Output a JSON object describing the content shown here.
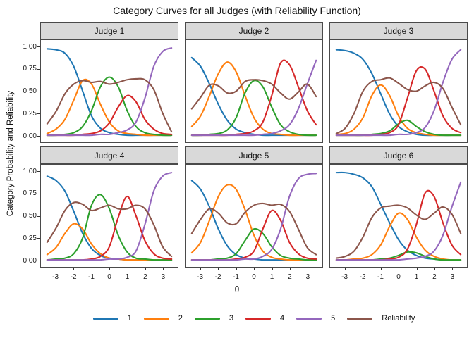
{
  "title": "Category Curves for all Judges (with Reliability Function)",
  "axes": {
    "x_title": "θ",
    "y_title": "Category Probability and Reliability",
    "x_ticks": [
      {
        "label": "-3",
        "value": -3
      },
      {
        "label": "-2",
        "value": -2
      },
      {
        "label": "-1",
        "value": -1
      },
      {
        "label": "0",
        "value": 0
      },
      {
        "label": "1",
        "value": 1
      },
      {
        "label": "2",
        "value": 2
      },
      {
        "label": "3",
        "value": 3
      }
    ],
    "y_ticks": [
      {
        "label": "1.00",
        "value": 1
      },
      {
        "label": "0.75",
        "value": 0.75
      },
      {
        "label": "0.50",
        "value": 0.5
      },
      {
        "label": "0.25",
        "value": 0.25
      },
      {
        "label": "0.00",
        "value": 0
      }
    ]
  },
  "legend": {
    "entries": [
      {
        "label": "1",
        "color": "#1f77b4"
      },
      {
        "label": "2",
        "color": "#ff7f0e"
      },
      {
        "label": "3",
        "color": "#2ca02c"
      },
      {
        "label": "4",
        "color": "#d62728"
      },
      {
        "label": "5",
        "color": "#9467bd"
      },
      {
        "label": "Reliability",
        "color": "#8c564b"
      }
    ]
  },
  "colors": {
    "strip_bg": "#d9d9d9",
    "border": "#4a4a4a",
    "tick": "#333333"
  },
  "chart_data": {
    "type": "line",
    "title": "Category Curves for all Judges (with Reliability Function)",
    "xlabel": "θ",
    "ylabel": "Category Probability and Reliability",
    "grid": false,
    "legend_position": "bottom",
    "xlim": [
      -3.85,
      3.85
    ],
    "ylim": [
      0,
      1
    ],
    "x": [
      -3.5,
      -3,
      -2.5,
      -2,
      -1.5,
      -1,
      -0.5,
      0,
      0.5,
      1,
      1.5,
      2,
      2.5,
      3,
      3.5
    ],
    "series_order": [
      "1",
      "2",
      "3",
      "4",
      "5",
      "Reliability"
    ],
    "palette": {
      "1": "#1f77b4",
      "2": "#ff7f0e",
      "3": "#2ca02c",
      "4": "#d62728",
      "5": "#9467bd",
      "Reliability": "#8c564b"
    },
    "facets": [
      {
        "label": "Judge 1",
        "series": {
          "1": [
            0.98,
            0.97,
            0.93,
            0.78,
            0.5,
            0.22,
            0.08,
            0.03,
            0.01,
            0,
            0,
            0,
            0,
            0,
            0
          ],
          "2": [
            0.02,
            0.07,
            0.18,
            0.4,
            0.62,
            0.58,
            0.35,
            0.15,
            0.05,
            0.02,
            0.01,
            0,
            0,
            0,
            0
          ],
          "3": [
            0,
            0,
            0.01,
            0.03,
            0.1,
            0.28,
            0.55,
            0.66,
            0.55,
            0.28,
            0.1,
            0.03,
            0.01,
            0,
            0
          ],
          "4": [
            0,
            0,
            0,
            0,
            0.01,
            0.02,
            0.05,
            0.14,
            0.32,
            0.45,
            0.38,
            0.18,
            0.07,
            0.02,
            0.01
          ],
          "5": [
            0,
            0,
            0,
            0,
            0,
            0,
            0.01,
            0.01,
            0.03,
            0.06,
            0.15,
            0.42,
            0.78,
            0.95,
            0.99
          ],
          "Reliability": [
            0.13,
            0.27,
            0.47,
            0.58,
            0.62,
            0.6,
            0.61,
            0.58,
            0.6,
            0.63,
            0.64,
            0.63,
            0.52,
            0.25,
            0.04
          ]
        }
      },
      {
        "label": "Judge 2",
        "series": {
          "1": [
            0.88,
            0.78,
            0.58,
            0.35,
            0.17,
            0.07,
            0.03,
            0.01,
            0,
            0,
            0,
            0,
            0,
            0,
            0
          ],
          "2": [
            0.1,
            0.22,
            0.45,
            0.7,
            0.83,
            0.72,
            0.45,
            0.2,
            0.07,
            0.02,
            0.01,
            0,
            0,
            0,
            0
          ],
          "3": [
            0,
            0,
            0.01,
            0.02,
            0.06,
            0.2,
            0.48,
            0.62,
            0.55,
            0.32,
            0.12,
            0.04,
            0.01,
            0,
            0
          ],
          "4": [
            0,
            0,
            0,
            0,
            0,
            0.01,
            0.02,
            0.05,
            0.15,
            0.45,
            0.82,
            0.8,
            0.55,
            0.28,
            0.12
          ],
          "5": [
            0,
            0,
            0,
            0,
            0,
            0,
            0,
            0,
            0.01,
            0.02,
            0.05,
            0.12,
            0.3,
            0.58,
            0.85
          ],
          "Reliability": [
            0.3,
            0.43,
            0.57,
            0.56,
            0.48,
            0.5,
            0.61,
            0.63,
            0.62,
            0.58,
            0.48,
            0.41,
            0.49,
            0.58,
            0.44
          ]
        }
      },
      {
        "label": "Judge 3",
        "series": {
          "1": [
            0.97,
            0.96,
            0.93,
            0.86,
            0.7,
            0.47,
            0.24,
            0.1,
            0.04,
            0.01,
            0,
            0,
            0,
            0,
            0
          ],
          "2": [
            0.01,
            0.02,
            0.07,
            0.2,
            0.45,
            0.57,
            0.45,
            0.22,
            0.08,
            0.03,
            0.01,
            0,
            0,
            0,
            0
          ],
          "3": [
            0,
            0,
            0,
            0,
            0.01,
            0.02,
            0.05,
            0.13,
            0.17,
            0.1,
            0.04,
            0.01,
            0,
            0,
            0
          ],
          "4": [
            0,
            0,
            0,
            0,
            0,
            0.01,
            0.03,
            0.12,
            0.42,
            0.73,
            0.75,
            0.5,
            0.22,
            0.08,
            0.03
          ],
          "5": [
            0,
            0,
            0,
            0,
            0,
            0,
            0,
            0.01,
            0.01,
            0.03,
            0.09,
            0.28,
            0.6,
            0.86,
            0.97
          ],
          "Reliability": [
            0.02,
            0.08,
            0.25,
            0.5,
            0.61,
            0.63,
            0.65,
            0.59,
            0.52,
            0.5,
            0.56,
            0.6,
            0.53,
            0.32,
            0.12
          ]
        }
      },
      {
        "label": "Judge 4",
        "series": {
          "1": [
            0.95,
            0.9,
            0.78,
            0.55,
            0.3,
            0.13,
            0.05,
            0.02,
            0.01,
            0,
            0,
            0,
            0,
            0,
            0
          ],
          "2": [
            0.06,
            0.14,
            0.3,
            0.41,
            0.35,
            0.18,
            0.07,
            0.02,
            0.01,
            0,
            0,
            0,
            0,
            0,
            0
          ],
          "3": [
            0,
            0.01,
            0.02,
            0.07,
            0.25,
            0.62,
            0.74,
            0.58,
            0.28,
            0.09,
            0.02,
            0.01,
            0,
            0,
            0
          ],
          "4": [
            0,
            0,
            0,
            0,
            0,
            0.01,
            0.04,
            0.15,
            0.48,
            0.72,
            0.5,
            0.22,
            0.07,
            0.02,
            0.01
          ],
          "5": [
            0,
            0,
            0,
            0,
            0,
            0,
            0,
            0.01,
            0.01,
            0.03,
            0.1,
            0.4,
            0.78,
            0.95,
            0.99
          ],
          "Reliability": [
            0.2,
            0.36,
            0.56,
            0.65,
            0.63,
            0.56,
            0.59,
            0.62,
            0.58,
            0.58,
            0.62,
            0.58,
            0.4,
            0.15,
            0.04
          ]
        }
      },
      {
        "label": "Judge 5",
        "series": {
          "1": [
            0.9,
            0.8,
            0.6,
            0.35,
            0.16,
            0.06,
            0.02,
            0.01,
            0,
            0,
            0,
            0,
            0,
            0,
            0
          ],
          "2": [
            0.08,
            0.2,
            0.45,
            0.72,
            0.85,
            0.8,
            0.57,
            0.28,
            0.1,
            0.03,
            0.01,
            0,
            0,
            0,
            0
          ],
          "3": [
            0,
            0,
            0,
            0.01,
            0.02,
            0.07,
            0.22,
            0.35,
            0.3,
            0.15,
            0.05,
            0.02,
            0.01,
            0,
            0
          ],
          "4": [
            0,
            0,
            0,
            0,
            0,
            0.01,
            0.03,
            0.1,
            0.35,
            0.56,
            0.45,
            0.2,
            0.07,
            0.02,
            0.01
          ],
          "5": [
            0,
            0,
            0,
            0,
            0,
            0,
            0.01,
            0.01,
            0.04,
            0.12,
            0.35,
            0.72,
            0.92,
            0.97,
            0.98
          ],
          "Reliability": [
            0.3,
            0.46,
            0.58,
            0.53,
            0.42,
            0.41,
            0.54,
            0.62,
            0.64,
            0.62,
            0.63,
            0.55,
            0.35,
            0.14,
            0.06
          ]
        }
      },
      {
        "label": "Judge 6",
        "series": {
          "1": [
            0.99,
            0.99,
            0.97,
            0.93,
            0.83,
            0.63,
            0.42,
            0.23,
            0.11,
            0.05,
            0.02,
            0.01,
            0,
            0,
            0
          ],
          "2": [
            0,
            0,
            0.01,
            0.02,
            0.06,
            0.17,
            0.38,
            0.53,
            0.46,
            0.26,
            0.11,
            0.04,
            0.01,
            0,
            0
          ],
          "3": [
            0,
            0,
            0,
            0,
            0,
            0.01,
            0.02,
            0.05,
            0.09,
            0.08,
            0.04,
            0.01,
            0,
            0,
            0
          ],
          "4": [
            0,
            0,
            0,
            0,
            0,
            0,
            0.01,
            0.03,
            0.12,
            0.4,
            0.76,
            0.72,
            0.42,
            0.17,
            0.06
          ],
          "5": [
            0,
            0,
            0,
            0,
            0,
            0,
            0,
            0,
            0.01,
            0.02,
            0.04,
            0.1,
            0.28,
            0.6,
            0.88
          ],
          "Reliability": [
            0.02,
            0.04,
            0.1,
            0.26,
            0.48,
            0.59,
            0.61,
            0.62,
            0.59,
            0.51,
            0.46,
            0.53,
            0.6,
            0.52,
            0.3
          ]
        }
      }
    ]
  }
}
